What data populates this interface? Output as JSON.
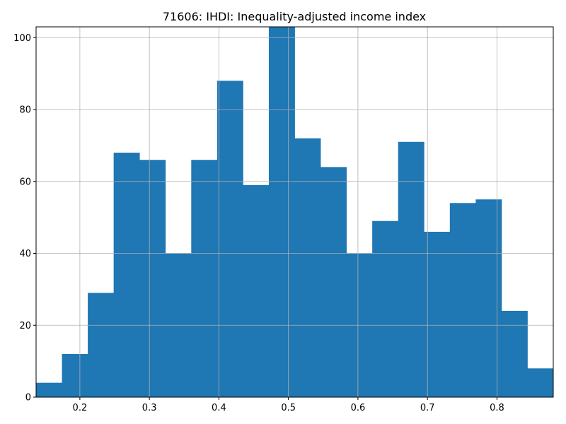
{
  "chart_data": {
    "type": "bar",
    "subtype": "histogram",
    "title": "71606: IHDI: Inequality-adjusted income index",
    "xlabel": "",
    "ylabel": "",
    "bin_edges": [
      0.137,
      0.1742,
      0.2114,
      0.2486,
      0.2858,
      0.323,
      0.3602,
      0.3974,
      0.4346,
      0.4718,
      0.509,
      0.5462,
      0.5834,
      0.6206,
      0.6578,
      0.695,
      0.7322,
      0.7694,
      0.8066,
      0.8438,
      0.881
    ],
    "values": [
      4,
      12,
      29,
      68,
      66,
      40,
      66,
      88,
      59,
      103,
      72,
      64,
      40,
      49,
      71,
      46,
      54,
      55,
      24,
      8
    ],
    "xlim": [
      0.137,
      0.881
    ],
    "ylim": [
      0,
      103
    ],
    "xticks": [
      0.2,
      0.3,
      0.4,
      0.5,
      0.6,
      0.7,
      0.8
    ],
    "xtick_labels": [
      "0.2",
      "0.3",
      "0.4",
      "0.5",
      "0.6",
      "0.7",
      "0.8"
    ],
    "yticks": [
      0,
      20,
      40,
      60,
      80,
      100
    ],
    "ytick_labels": [
      "0",
      "20",
      "40",
      "60",
      "80",
      "100"
    ],
    "grid": true,
    "bar_color": "#1f77b4",
    "grid_color": "#b0b0b0",
    "legend": "none"
  }
}
